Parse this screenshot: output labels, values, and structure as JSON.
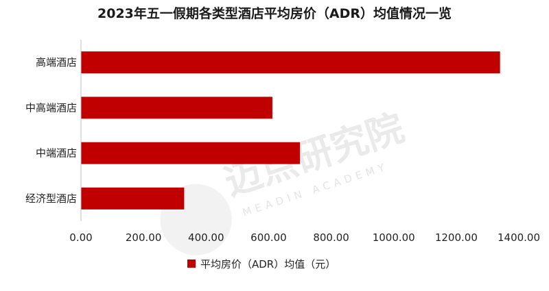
{
  "chart_data": {
    "type": "bar",
    "orientation": "horizontal",
    "title": "2023年五一假期各类型酒店平均房价（ADR）均值情况一览",
    "categories": [
      "高端酒店",
      "中高端酒店",
      "中端酒店",
      "经济型酒店"
    ],
    "series": [
      {
        "name": "平均房价（ADR）均值（元）",
        "values": [
          1340,
          612,
          700,
          330
        ],
        "color": "#c00000"
      }
    ],
    "xlim": [
      0,
      1400
    ],
    "x_ticks": [
      "0.00",
      "200.00",
      "400.00",
      "600.00",
      "800.00",
      "1000.00",
      "1200.00",
      "1400.00"
    ],
    "grid": false,
    "legend_position": "bottom"
  },
  "watermark": {
    "text": "迈点研究院",
    "subtext": "MEADIN ACADEMY"
  }
}
